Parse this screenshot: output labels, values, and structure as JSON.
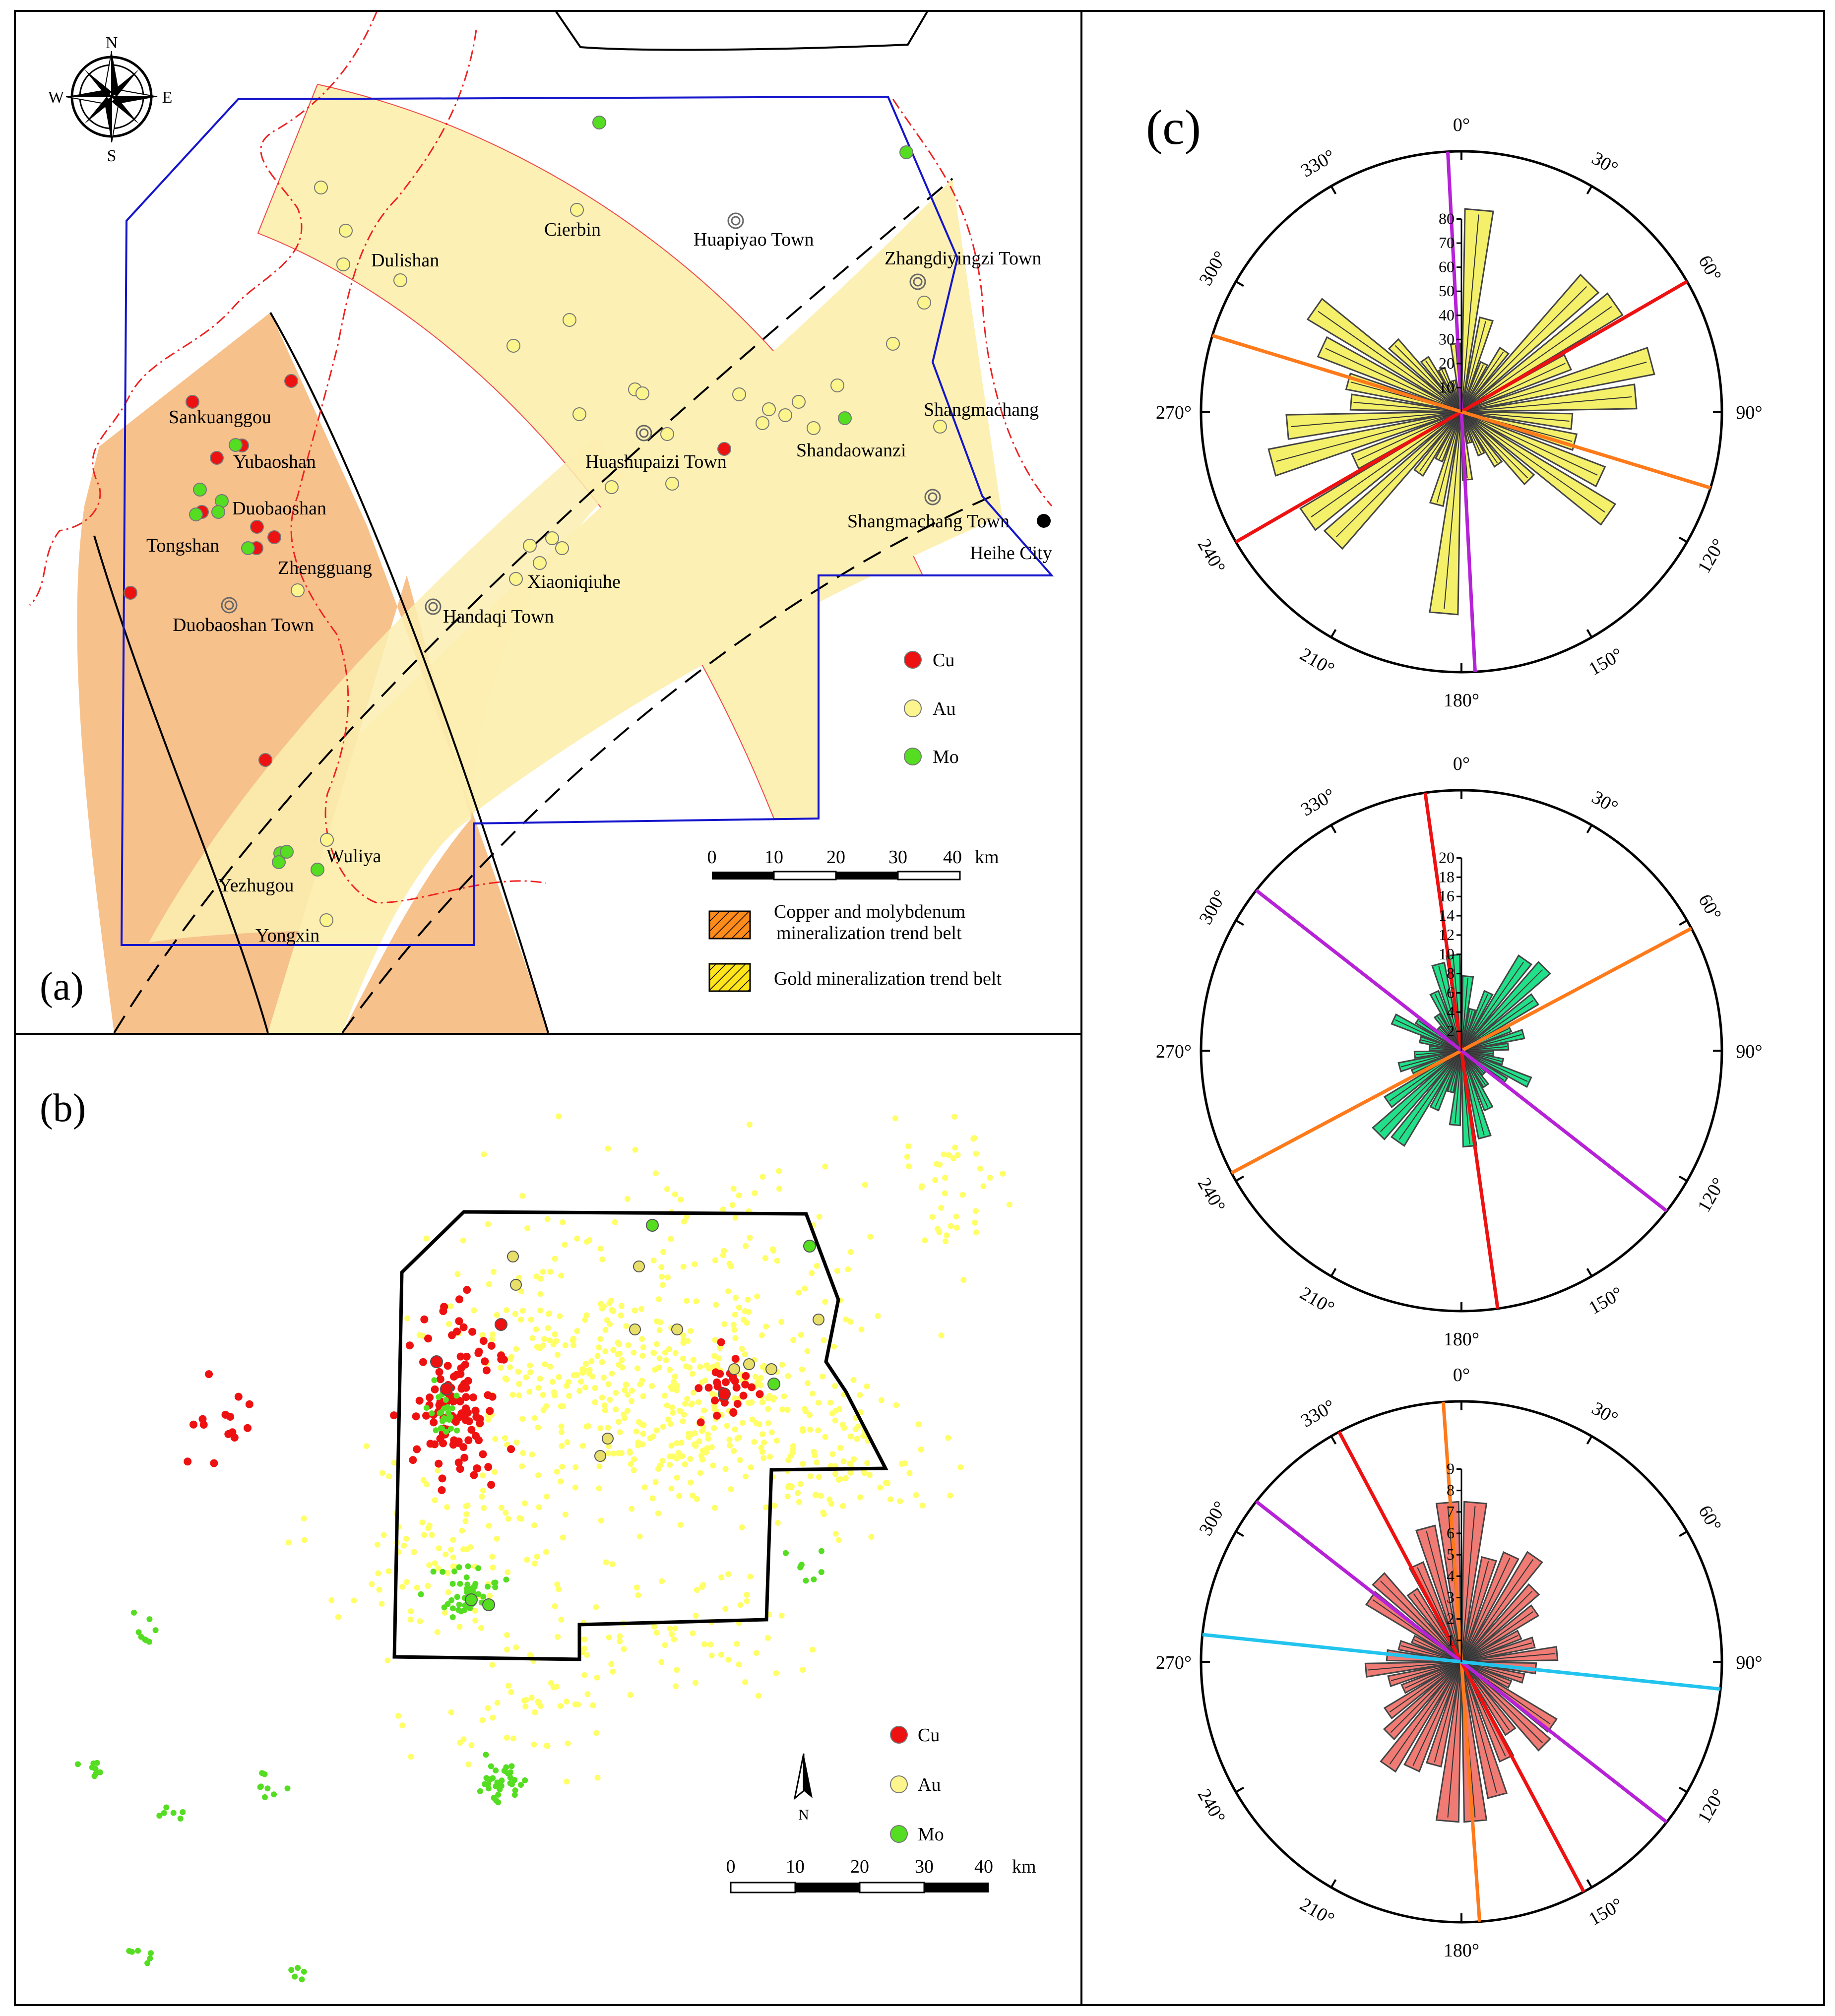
{
  "panel_a": {
    "label": "(a)",
    "compass": {
      "n": "N",
      "s": "S",
      "e": "E",
      "w": "W"
    },
    "places": [
      {
        "id": "sankuanggou",
        "text": "Sankuanggou"
      },
      {
        "id": "yubaoshan",
        "text": "Yubaoshan"
      },
      {
        "id": "duobaoshan",
        "text": "Duobaoshan"
      },
      {
        "id": "tongshan",
        "text": "Tongshan"
      },
      {
        "id": "zhengguang",
        "text": "Zhengguang"
      },
      {
        "id": "duobaoshan-town",
        "text": "Duobaoshan Town"
      },
      {
        "id": "handaqi-town",
        "text": "Handaqi Town"
      },
      {
        "id": "xiaoniqiuhe",
        "text": "Xiaoniqiuhe"
      },
      {
        "id": "dulishan",
        "text": "Dulishan"
      },
      {
        "id": "cierbin",
        "text": "Cierbin"
      },
      {
        "id": "huapiyao-town",
        "text": "Huapiyao Town"
      },
      {
        "id": "zhangdiyingzi-town",
        "text": "Zhangdiyingzi Town"
      },
      {
        "id": "shangmachang",
        "text": "Shangmachang"
      },
      {
        "id": "huashupaizi-town",
        "text": "Huashupaizi Town"
      },
      {
        "id": "shandaowanzi",
        "text": "Shandaowanzi"
      },
      {
        "id": "shangmachang-town",
        "text": "Shangmachang Town"
      },
      {
        "id": "heihe-city",
        "text": "Heihe City"
      },
      {
        "id": "wuliya",
        "text": "Wuliya"
      },
      {
        "id": "yezhugou",
        "text": "Yezhugou"
      },
      {
        "id": "yongxin",
        "text": "Yongxin"
      }
    ],
    "legend": {
      "cu": "Cu",
      "au": "Au",
      "mo": "Mo"
    },
    "scale": {
      "ticks": [
        "0",
        "10",
        "20",
        "30",
        "40"
      ],
      "unit": "km"
    },
    "belts": {
      "cu_mo_line1": "Copper and molybdenum",
      "cu_mo_line2": "mineralization trend belt",
      "au": "Gold mineralization trend belt"
    }
  },
  "panel_b": {
    "label": "(b)",
    "legend": {
      "cu": "Cu",
      "au": "Au",
      "mo": "Mo"
    },
    "north": "N",
    "scale": {
      "ticks": [
        "0",
        "10",
        "20",
        "30",
        "40"
      ],
      "unit": "km"
    }
  },
  "panel_c": {
    "label": "(c)",
    "angle_labels": [
      "0°",
      "30°",
      "60°",
      "90°",
      "120°",
      "150°",
      "180°",
      "210°",
      "240°",
      "270°",
      "300°",
      "330°"
    ],
    "roses": [
      {
        "id": "rose-cu",
        "radial_ticks": [
          "10",
          "20",
          "30",
          "40",
          "50",
          "60",
          "70",
          "80"
        ]
      },
      {
        "id": "rose-mo",
        "radial_ticks": [
          "2",
          "4",
          "6",
          "8",
          "10",
          "12",
          "14",
          "16",
          "18",
          "20"
        ]
      },
      {
        "id": "rose-au",
        "radial_ticks": [
          "1",
          "2",
          "3",
          "4",
          "5",
          "6",
          "7",
          "8",
          "9"
        ]
      }
    ]
  },
  "colors": {
    "cu": "#ee1111",
    "au": "#ffff66",
    "mo": "#55dd22",
    "belt_au": "#fcf0b4",
    "belt_cu": "#f7c18b",
    "boundary": "#1515cc",
    "rose_cu": "#f4f06a",
    "rose_mo": "#22e08a",
    "rose_au": "#ef7b74",
    "orange": "#ff7a1a",
    "purple": "#b622d6",
    "red": "#ee1111",
    "cyan": "#22c4ee"
  }
}
